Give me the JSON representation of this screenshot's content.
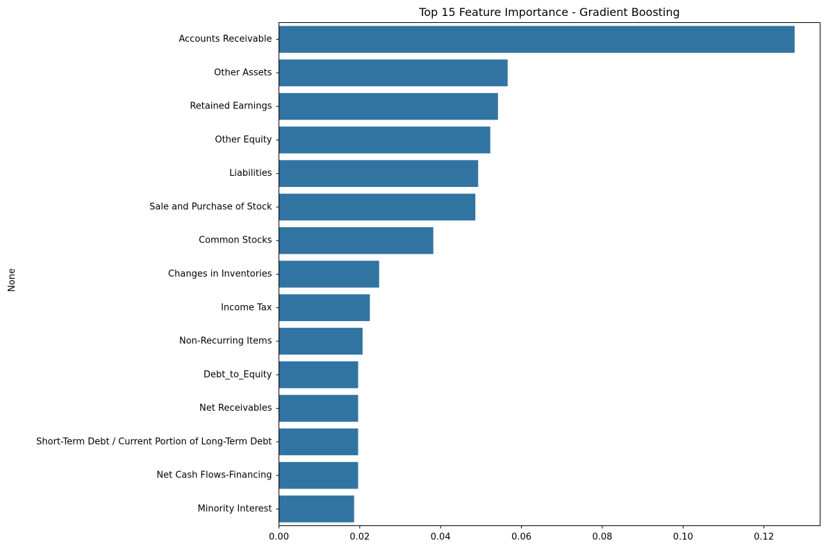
{
  "chart_data": {
    "type": "bar",
    "orientation": "horizontal",
    "title": "Top 15 Feature Importance - Gradient Boosting",
    "xlabel": "",
    "ylabel": "None",
    "categories": [
      "Accounts Receivable",
      "Other Assets",
      "Retained Earnings",
      "Other Equity",
      "Liabilities",
      "Sale and Purchase of Stock",
      "Common Stocks",
      "Changes in Inventories",
      "Income Tax",
      "Non-Recurring Items",
      "Debt_to_Equity",
      "Net Receivables",
      "Short-Term Debt / Current Portion of Long-Term Debt",
      "Net Cash Flows-Financing",
      "Minority Interest"
    ],
    "values": [
      0.1276,
      0.0566,
      0.0542,
      0.0523,
      0.0493,
      0.0486,
      0.0382,
      0.0248,
      0.0225,
      0.0207,
      0.0196,
      0.0196,
      0.0196,
      0.0196,
      0.0186
    ],
    "xlim": [
      0,
      0.1339
    ],
    "xticks": [
      0.0,
      0.02,
      0.04,
      0.06,
      0.08,
      0.1,
      0.12
    ],
    "xtick_labels": [
      "0.00",
      "0.02",
      "0.04",
      "0.06",
      "0.08",
      "0.10",
      "0.12"
    ],
    "grid": false,
    "bar_color": "#3274a1"
  }
}
